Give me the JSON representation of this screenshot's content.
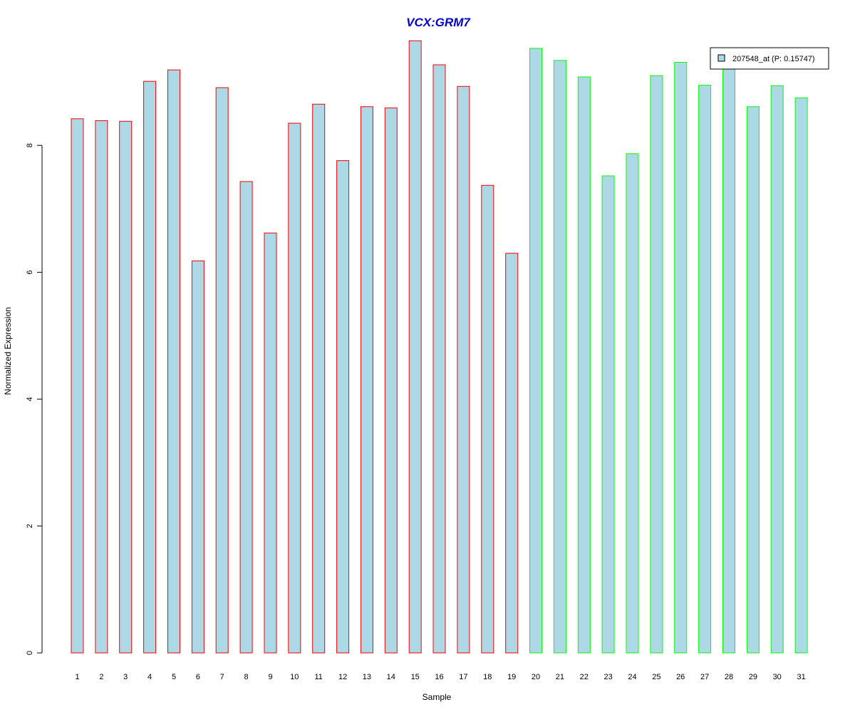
{
  "chart_data": {
    "type": "bar",
    "title": "VCX:GRM7",
    "xlabel": "Sample",
    "ylabel": "Normalized Expression",
    "categories": [
      "1",
      "2",
      "3",
      "4",
      "5",
      "6",
      "7",
      "8",
      "9",
      "10",
      "11",
      "12",
      "13",
      "14",
      "15",
      "16",
      "17",
      "18",
      "19",
      "20",
      "21",
      "22",
      "23",
      "24",
      "25",
      "26",
      "27",
      "28",
      "29",
      "30",
      "31"
    ],
    "values": [
      8.42,
      8.39,
      8.38,
      9.01,
      9.19,
      6.18,
      8.91,
      7.43,
      6.62,
      8.35,
      8.65,
      7.76,
      8.61,
      8.59,
      9.65,
      9.27,
      8.93,
      7.37,
      6.3,
      9.53,
      9.34,
      9.08,
      7.52,
      7.87,
      9.1,
      9.31,
      8.95,
      9.3,
      8.61,
      8.94,
      8.75
    ],
    "ytick_values": [
      0,
      2,
      4,
      6,
      8
    ],
    "ytick_labels": [
      "0",
      "2",
      "4",
      "6",
      "8"
    ],
    "ylim": [
      0,
      9.7
    ],
    "grid": false,
    "legend": {
      "label": "207548_at (P: 0.15747)",
      "placement": "top-right"
    },
    "colors": {
      "bar_fill": "#add8e6",
      "group1_border": "#ff0000",
      "group2_border": "#00ff00",
      "title": "#0000cc",
      "axis": "#000000"
    },
    "group1_count": 19
  }
}
